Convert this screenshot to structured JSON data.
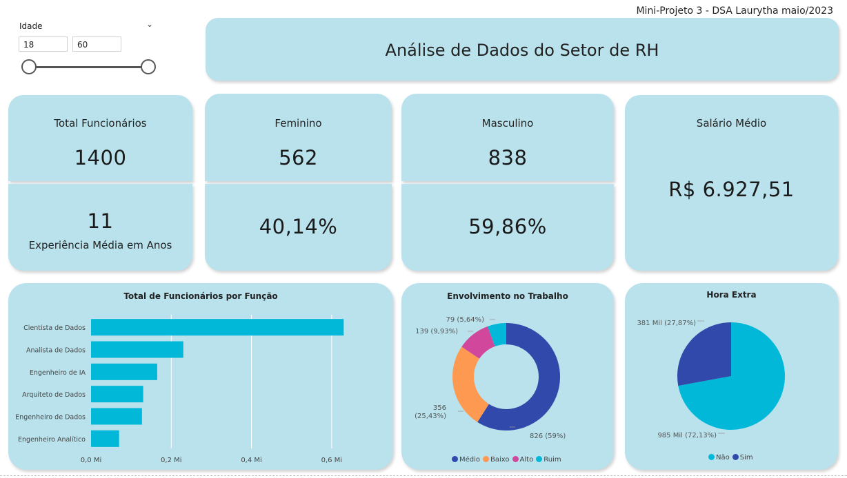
{
  "header": {
    "caption": "Mini-Projeto 3 - DSA Laurytha maio/2023"
  },
  "slicer": {
    "label": "Idade",
    "min_value": "18",
    "max_value": "60"
  },
  "title_banner": {
    "text": "Análise de Dados do Setor de RH"
  },
  "kpis": {
    "total": {
      "label": "Total Funcionários",
      "value": "1400"
    },
    "experiencia": {
      "value": "11",
      "label": "Experiência Média em Anos"
    },
    "feminino": {
      "label": "Feminino",
      "value": "562",
      "pct": "40,14%"
    },
    "masculino": {
      "label": "Masculino",
      "value": "838",
      "pct": "59,86%"
    },
    "salario": {
      "label": "Salário Médio",
      "value": "R$ 6.927,51"
    }
  },
  "chart_data": [
    {
      "type": "bar",
      "orientation": "horizontal",
      "title": "Total de Funcionários por Função",
      "categories": [
        "Cientista de Dados",
        "Analista de Dados",
        "Engenheiro de IA",
        "Arquiteto de Dados",
        "Engenheiro de Dados",
        "Engenheiro Analítico"
      ],
      "values": [
        0.63,
        0.23,
        0.165,
        0.13,
        0.127,
        0.07
      ],
      "x_ticks": [
        "0,0 Mi",
        "0,2 Mi",
        "0,4 Mi",
        "0,6 Mi"
      ],
      "xlim": [
        0,
        0.7
      ],
      "grid": true,
      "color": "#01b8d9"
    },
    {
      "type": "pie",
      "variant": "donut",
      "title": "Envolvimento no Trabalho",
      "categories": [
        "Médio",
        "Baixo",
        "Alto",
        "Ruim"
      ],
      "values": [
        826,
        356,
        139,
        79
      ],
      "labels": [
        "826 (59%)",
        "356 (25,43%)",
        "139 (9,93%)",
        "79 (5,64%)"
      ],
      "colors": [
        "#3049aa",
        "#fd9951",
        "#d0479b",
        "#01b8d9"
      ],
      "legend": "bottom"
    },
    {
      "type": "pie",
      "title": "Hora Extra",
      "categories": [
        "Não",
        "Sim"
      ],
      "values": [
        985,
        381
      ],
      "labels": [
        "985 Mil (72,13%)",
        "381 Mil (27,87%)"
      ],
      "colors": [
        "#01b8d9",
        "#3049aa"
      ],
      "legend": "bottom"
    }
  ]
}
